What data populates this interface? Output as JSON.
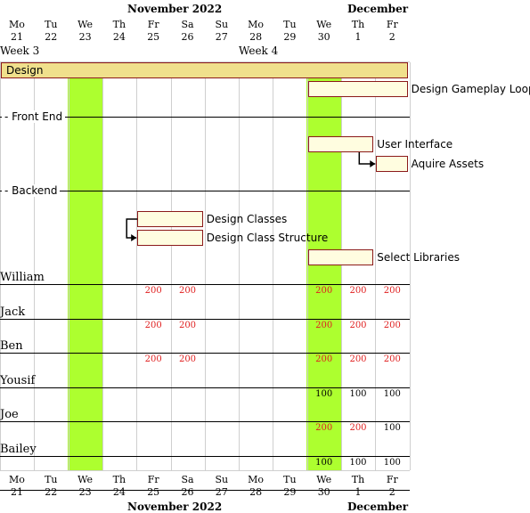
{
  "header_top": {
    "months": [
      {
        "label": "November 2022",
        "start_col": 0
      },
      {
        "label": "December",
        "start_col": 10
      }
    ],
    "weeks": [
      {
        "label": "Week 3",
        "start_col": 0
      },
      {
        "label": "Week 4",
        "start_col": 7
      }
    ]
  },
  "days": [
    {
      "dow": "Mo",
      "num": "21"
    },
    {
      "dow": "Tu",
      "num": "22"
    },
    {
      "dow": "We",
      "num": "23"
    },
    {
      "dow": "Th",
      "num": "24"
    },
    {
      "dow": "Fr",
      "num": "25"
    },
    {
      "dow": "Sa",
      "num": "26"
    },
    {
      "dow": "Su",
      "num": "27"
    },
    {
      "dow": "Mo",
      "num": "28"
    },
    {
      "dow": "Tu",
      "num": "29"
    },
    {
      "dow": "We",
      "num": "30"
    },
    {
      "dow": "Th",
      "num": "1"
    },
    {
      "dow": "Fr",
      "num": "2"
    }
  ],
  "highlight_columns": [
    2,
    9
  ],
  "highlight_color": "#adff2f",
  "groups": [
    {
      "label": "Front End",
      "row": 2
    },
    {
      "label": "Backend",
      "row": 4
    }
  ],
  "tasks": [
    {
      "label": "Design",
      "start_col": 0,
      "end_col": 12,
      "row": 0,
      "summary": true,
      "label_inside": true
    },
    {
      "label": "Design Gameplay Loop",
      "start_col": 9,
      "end_col": 12,
      "row": 1
    },
    {
      "label": "User Interface",
      "start_col": 9,
      "end_col": 11,
      "row": 3
    },
    {
      "label": "Aquire Assets",
      "start_col": 11,
      "end_col": 12,
      "row": 4
    },
    {
      "label": "Design Classes",
      "start_col": 4,
      "end_col": 6,
      "row": 5
    },
    {
      "label": "Design Class Structure",
      "start_col": 4,
      "end_col": 6,
      "row": 6
    },
    {
      "label": "Select Libraries",
      "start_col": 9,
      "end_col": 11,
      "row": 7
    }
  ],
  "dependencies": [
    {
      "from": 2,
      "to": 3
    },
    {
      "from": 4,
      "to": 5
    }
  ],
  "resources": [
    {
      "name": "William",
      "cells": [
        {
          "col": 4,
          "v": "200",
          "over": true
        },
        {
          "col": 5,
          "v": "200",
          "over": true
        },
        {
          "col": 9,
          "v": "200",
          "over": true
        },
        {
          "col": 10,
          "v": "200",
          "over": true
        },
        {
          "col": 11,
          "v": "200",
          "over": true
        }
      ]
    },
    {
      "name": "Jack",
      "cells": [
        {
          "col": 4,
          "v": "200",
          "over": true
        },
        {
          "col": 5,
          "v": "200",
          "over": true
        },
        {
          "col": 9,
          "v": "200",
          "over": true
        },
        {
          "col": 10,
          "v": "200",
          "over": true
        },
        {
          "col": 11,
          "v": "200",
          "over": true
        }
      ]
    },
    {
      "name": "Ben",
      "cells": [
        {
          "col": 4,
          "v": "200",
          "over": true
        },
        {
          "col": 5,
          "v": "200",
          "over": true
        },
        {
          "col": 9,
          "v": "200",
          "over": true
        },
        {
          "col": 10,
          "v": "200",
          "over": true
        },
        {
          "col": 11,
          "v": "200",
          "over": true
        }
      ]
    },
    {
      "name": "Yousif",
      "cells": [
        {
          "col": 9,
          "v": "100",
          "over": false
        },
        {
          "col": 10,
          "v": "100",
          "over": false
        },
        {
          "col": 11,
          "v": "100",
          "over": false
        }
      ]
    },
    {
      "name": "Joe",
      "cells": [
        {
          "col": 9,
          "v": "200",
          "over": true
        },
        {
          "col": 10,
          "v": "200",
          "over": true
        },
        {
          "col": 11,
          "v": "100",
          "over": false
        }
      ]
    },
    {
      "name": "Bailey",
      "cells": [
        {
          "col": 9,
          "v": "100",
          "over": false
        },
        {
          "col": 10,
          "v": "100",
          "over": false
        },
        {
          "col": 11,
          "v": "100",
          "over": false
        }
      ]
    }
  ],
  "footer": {
    "months": [
      {
        "label": "November 2022",
        "start_col": 0
      },
      {
        "label": "December",
        "start_col": 10
      }
    ]
  }
}
